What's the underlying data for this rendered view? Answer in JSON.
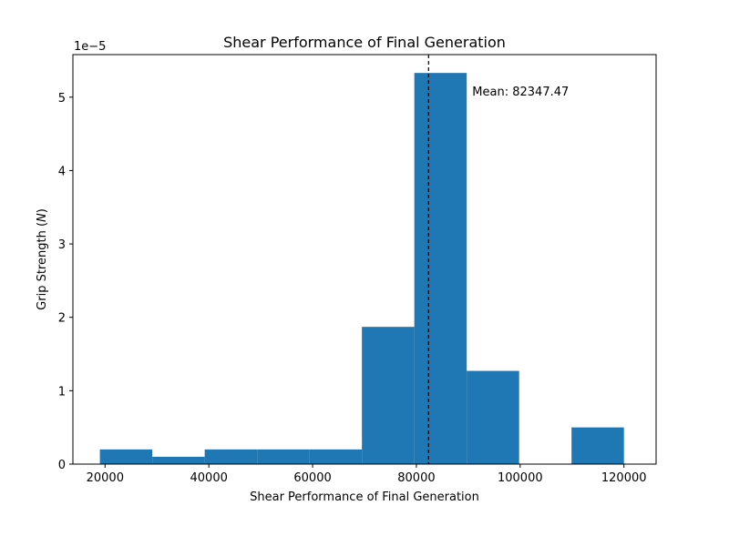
{
  "chart_data": {
    "type": "bar",
    "title": "Shear Performance of Final Generation",
    "xlabel": "Shear Performance of Final Generation",
    "ylabel": "Grip Strength (N)",
    "y_offset_label": "1e−5",
    "y_multiplier": 1e-05,
    "xlim": [
      13800,
      126200
    ],
    "ylim": [
      0,
      5.58
    ],
    "x_ticks": [
      20000,
      40000,
      60000,
      80000,
      100000,
      120000
    ],
    "y_ticks": [
      0,
      1,
      2,
      3,
      4,
      5
    ],
    "bins": [
      {
        "x0": 19000,
        "x1": 29100,
        "value": 0.2
      },
      {
        "x0": 29100,
        "x1": 39200,
        "value": 0.1
      },
      {
        "x0": 39200,
        "x1": 49300,
        "value": 0.2
      },
      {
        "x0": 49300,
        "x1": 59400,
        "value": 0.2
      },
      {
        "x0": 59400,
        "x1": 69500,
        "value": 0.2
      },
      {
        "x0": 69500,
        "x1": 79600,
        "value": 1.87
      },
      {
        "x0": 79600,
        "x1": 89700,
        "value": 5.33
      },
      {
        "x0": 89700,
        "x1": 99800,
        "value": 1.27
      },
      {
        "x0": 99800,
        "x1": 109900,
        "value": 0
      },
      {
        "x0": 109900,
        "x1": 120000,
        "value": 0.5
      }
    ],
    "mean_line": {
      "x": 82347.47,
      "label": "Mean: 82347.47"
    },
    "bar_color": "#1f77b4",
    "grid": false,
    "legend": "none"
  }
}
